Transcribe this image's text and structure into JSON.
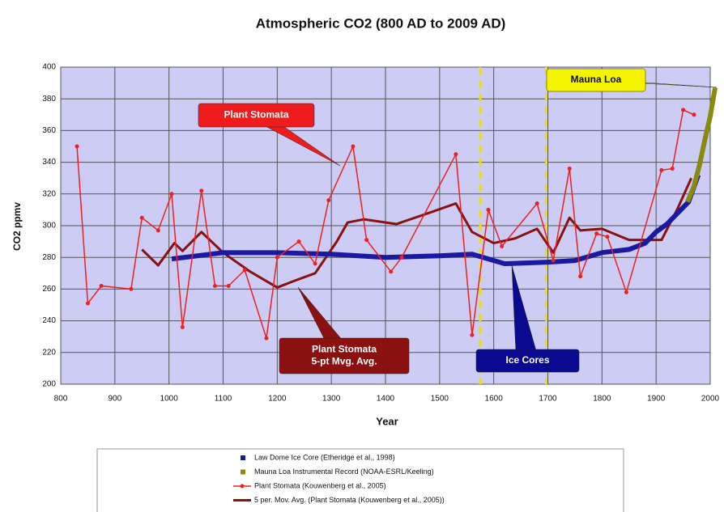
{
  "chart_data": {
    "type": "line",
    "title": "Atmospheric CO2 (800 AD to 2009 AD)",
    "x_label": "Year",
    "y_label": "CO2 ppmv",
    "xlim": [
      800,
      2000
    ],
    "ylim": [
      200,
      400
    ],
    "xticks": [
      800,
      900,
      1000,
      1100,
      1200,
      1300,
      1400,
      1500,
      1600,
      1700,
      1800,
      1900,
      2000
    ],
    "yticks": [
      200,
      220,
      240,
      260,
      280,
      300,
      320,
      340,
      360,
      380,
      400
    ],
    "grid": true,
    "background": "#ccccf4",
    "vlines": [
      1575,
      1697
    ],
    "vline_color": "#f0e000",
    "series": [
      {
        "name": "Law Dome Ice Core (Etheridge et al., 1998)",
        "color": "#1a1aa0",
        "width": 6,
        "markers": false,
        "x": [
          1005,
          1100,
          1200,
          1300,
          1400,
          1500,
          1560,
          1620,
          1700,
          1750,
          1800,
          1850,
          1880,
          1900,
          1920,
          1940,
          1960,
          1978
        ],
        "values": [
          279,
          283,
          283,
          282,
          280,
          281,
          282,
          276,
          277,
          278,
          283,
          285,
          289,
          296,
          301,
          308,
          315,
          332
        ]
      },
      {
        "name": "Mauna Loa Instrumental Record (NOAA-ESRL/Keeling)",
        "color": "#8a8a10",
        "width": 6,
        "markers": false,
        "x": [
          1958,
          1970,
          1980,
          1990,
          2000,
          2009
        ],
        "values": [
          315,
          325,
          338,
          354,
          369,
          387
        ]
      },
      {
        "name": "Plant Stomata (Kouwenberg et al., 2005)",
        "color": "#ee2020",
        "width": 1.5,
        "markers": true,
        "x": [
          830,
          850,
          875,
          930,
          950,
          980,
          1005,
          1025,
          1060,
          1085,
          1110,
          1140,
          1180,
          1200,
          1240,
          1270,
          1295,
          1340,
          1365,
          1410,
          1430,
          1530,
          1560,
          1590,
          1615,
          1680,
          1710,
          1740,
          1760,
          1790,
          1810,
          1845,
          1910,
          1930,
          1950,
          1970
        ],
        "values": [
          350,
          251,
          262,
          260,
          305,
          297,
          320,
          236,
          322,
          262,
          262,
          272,
          229,
          280,
          290,
          276,
          316,
          350,
          291,
          271,
          280,
          345,
          231,
          310,
          287,
          314,
          278,
          336,
          268,
          295,
          293,
          258,
          335,
          336,
          373,
          370
        ]
      },
      {
        "name": "5 per. Mov. Avg. (Plant Stomata (Kouwenberg et al., 2005))",
        "color": "#8b1010",
        "width": 3,
        "markers": false,
        "x": [
          950,
          980,
          1010,
          1025,
          1060,
          1100,
          1150,
          1200,
          1230,
          1270,
          1310,
          1330,
          1360,
          1420,
          1480,
          1530,
          1560,
          1600,
          1640,
          1680,
          1710,
          1740,
          1760,
          1800,
          1850,
          1910,
          1940,
          1965
        ],
        "values": [
          285,
          275,
          289,
          284,
          296,
          283,
          271,
          261,
          265,
          270,
          290,
          302,
          304,
          301,
          308,
          314,
          296,
          289,
          292,
          298,
          283,
          305,
          297,
          298,
          291,
          291,
          311,
          330
        ]
      }
    ],
    "annotations": [
      {
        "lines": [
          "Plant Stomata"
        ],
        "color": "#ee1c1c",
        "text_color": "#ffffff"
      },
      {
        "lines": [
          "Plant Stomata",
          "5-pt Mvg. Avg."
        ],
        "color": "#8b1010",
        "text_color": "#ffffff"
      },
      {
        "lines": [
          "Ice Cores"
        ],
        "color": "#0a0a90",
        "text_color": "#ffffff"
      },
      {
        "lines": [
          "Mauna Loa"
        ],
        "color": "#f4f400",
        "text_color": "#111111"
      }
    ]
  }
}
